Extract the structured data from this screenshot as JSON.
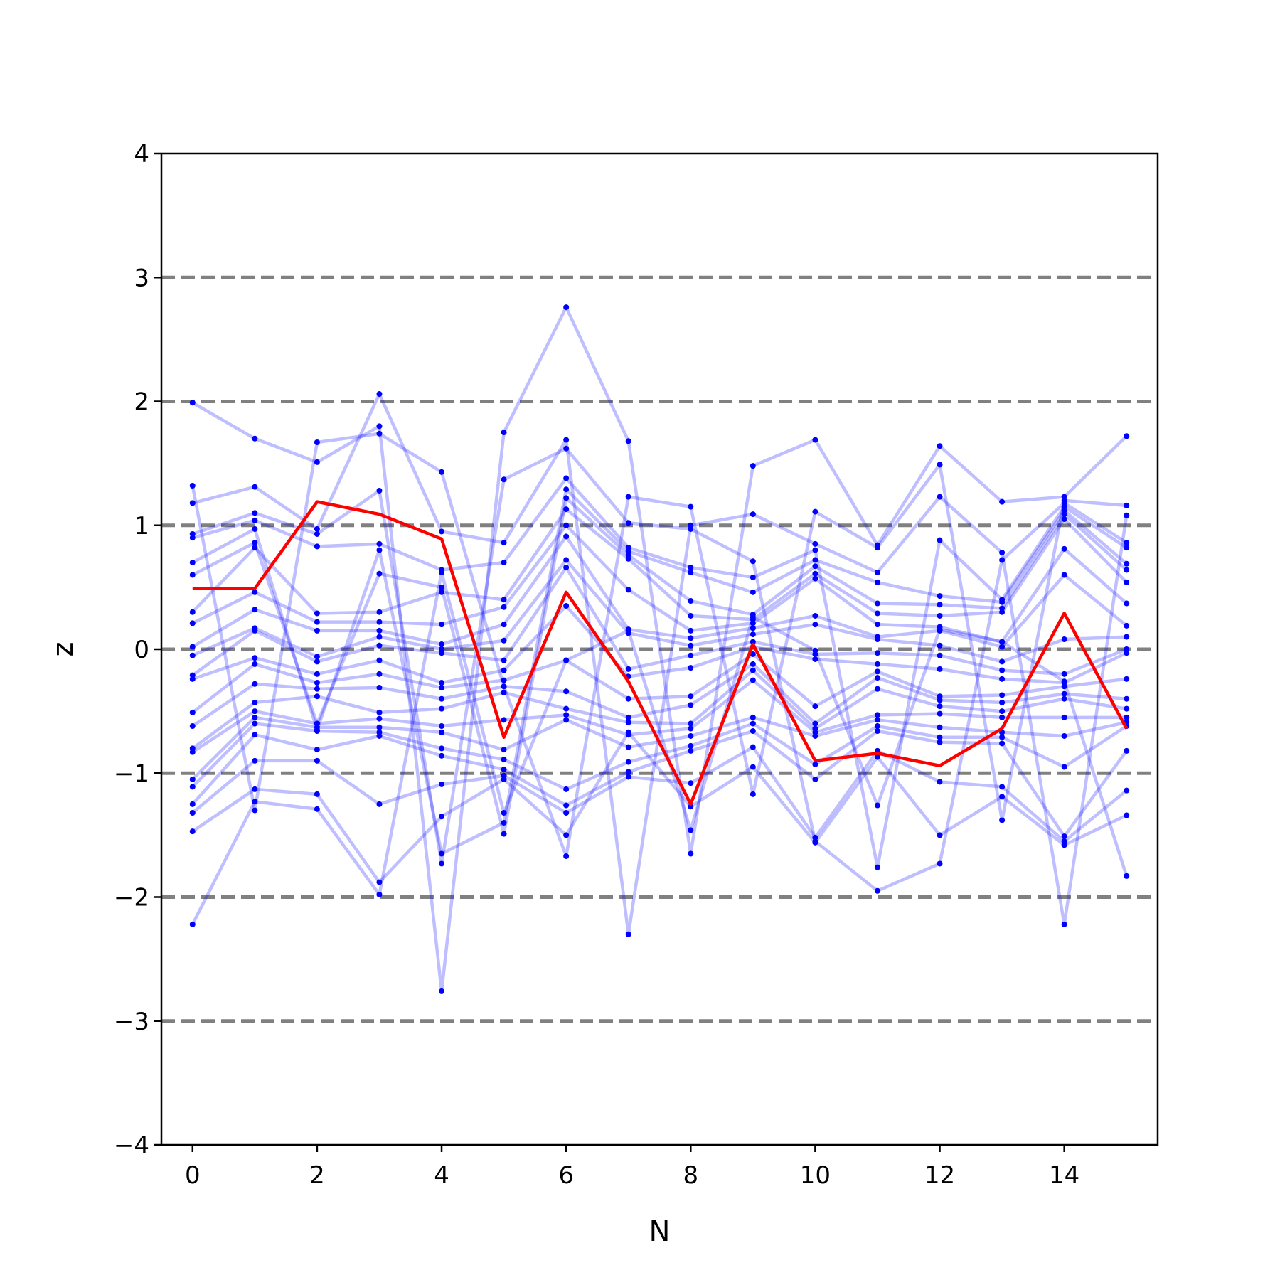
{
  "chart_data": {
    "type": "line",
    "title": "",
    "xlabel": "N",
    "ylabel": "z",
    "xlim": [
      -0.5,
      15.5
    ],
    "ylim": [
      -4,
      4
    ],
    "xticks": [
      0,
      2,
      4,
      6,
      8,
      10,
      12,
      14
    ],
    "xtick_labels": [
      "0",
      "2",
      "4",
      "6",
      "8",
      "10",
      "12",
      "14"
    ],
    "yticks": [
      -4,
      -3,
      -2,
      -1,
      0,
      1,
      2,
      3,
      4
    ],
    "ytick_labels": [
      "−4",
      "−3",
      "−2",
      "−1",
      "0",
      "1",
      "2",
      "3",
      "4"
    ],
    "reference_lines": [
      -3,
      -2,
      -1,
      0,
      1,
      2,
      3
    ],
    "grid": false,
    "legend": "none",
    "x": [
      0,
      1,
      2,
      3,
      4,
      5,
      6,
      7,
      8,
      9,
      10,
      11,
      12,
      13,
      14,
      15
    ],
    "background_series": [
      [
        1.99,
        1.7,
        1.51,
        1.8,
        -2.76,
        1.75,
        2.76,
        1.68,
        -1.65,
        1.48,
        1.69,
        0.84,
        1.64,
        1.19,
        1.23,
        1.72
      ],
      [
        1.32,
        -1.3,
        1.67,
        1.74,
        1.43,
        -0.3,
        -1.67,
        1.23,
        1.15,
        -1.17,
        1.11,
        0.82,
        1.49,
        -1.38,
        1.2,
        1.16
      ],
      [
        1.18,
        1.31,
        0.97,
        2.06,
        0.95,
        0.86,
        1.69,
        -2.3,
        1.0,
        1.09,
        0.85,
        0.62,
        1.23,
        0.78,
        -2.22,
        1.08
      ],
      [
        0.93,
        1.1,
        0.93,
        1.28,
        -1.73,
        1.37,
        1.62,
        1.02,
        0.97,
        0.71,
        -1.55,
        -1.95,
        -1.73,
        0.72,
        1.18,
        0.86
      ],
      [
        0.9,
        1.04,
        0.83,
        0.85,
        0.64,
        0.7,
        1.38,
        0.82,
        0.66,
        0.58,
        0.8,
        -1.76,
        0.88,
        0.4,
        1.15,
        0.82
      ],
      [
        0.7,
        0.97,
        -0.65,
        0.8,
        -1.65,
        -1.4,
        1.29,
        0.79,
        0.62,
        0.46,
        0.72,
        0.54,
        0.43,
        0.38,
        1.12,
        0.69
      ],
      [
        0.6,
        0.86,
        -0.6,
        0.61,
        0.5,
        -1.49,
        1.22,
        0.76,
        0.39,
        0.28,
        0.67,
        0.37,
        0.36,
        0.33,
        1.09,
        0.64
      ],
      [
        0.3,
        0.82,
        0.29,
        0.3,
        0.46,
        0.4,
        1.13,
        0.73,
        0.27,
        0.24,
        0.61,
        0.29,
        0.27,
        0.3,
        1.05,
        0.54
      ],
      [
        0.21,
        0.46,
        0.22,
        0.22,
        0.2,
        0.34,
        1.0,
        0.48,
        0.15,
        0.21,
        0.57,
        0.2,
        0.18,
        0.06,
        0.81,
        0.37
      ],
      [
        0.02,
        0.32,
        0.15,
        0.15,
        0.04,
        0.2,
        0.91,
        0.16,
        0.09,
        0.17,
        0.27,
        0.1,
        0.15,
        0.02,
        0.6,
        0.19
      ],
      [
        -0.05,
        0.17,
        -0.06,
        0.1,
        0.0,
        0.07,
        0.72,
        0.13,
        0.03,
        0.12,
        0.2,
        0.08,
        0.03,
        -0.1,
        0.08,
        0.1
      ],
      [
        -0.21,
        0.15,
        -0.1,
        0.03,
        -0.03,
        -0.09,
        0.66,
        -0.16,
        -0.05,
        0.06,
        -0.04,
        -0.03,
        -0.05,
        -0.17,
        -0.2,
        0.0
      ],
      [
        -0.24,
        -0.07,
        -0.2,
        -0.09,
        -0.27,
        -0.17,
        0.35,
        -0.22,
        -0.15,
        0.02,
        -0.08,
        -0.12,
        -0.16,
        -0.24,
        -0.27,
        -0.03
      ],
      [
        -0.51,
        -0.12,
        -0.27,
        -0.2,
        -0.31,
        -0.25,
        -0.09,
        -0.4,
        -0.38,
        -0.04,
        -0.46,
        -0.18,
        -0.38,
        -0.37,
        -0.3,
        -0.24
      ],
      [
        -0.62,
        -0.28,
        -0.32,
        -0.31,
        -0.4,
        -0.3,
        -0.34,
        -0.55,
        -0.45,
        -0.12,
        -0.6,
        -0.23,
        -0.41,
        -0.43,
        -0.36,
        -0.4
      ],
      [
        -0.8,
        -0.43,
        -0.38,
        -0.51,
        -0.48,
        -0.35,
        -0.48,
        -0.59,
        -0.6,
        -0.17,
        -0.64,
        -0.32,
        -0.46,
        -0.5,
        -0.4,
        -0.48
      ],
      [
        -0.83,
        -0.5,
        -0.6,
        -0.56,
        -0.62,
        -0.57,
        -0.53,
        -0.69,
        -0.64,
        -0.25,
        -0.67,
        -0.53,
        -0.52,
        -0.55,
        -0.55,
        -0.55
      ],
      [
        -1.05,
        -0.55,
        -0.63,
        -0.63,
        -0.67,
        -0.81,
        -0.57,
        -0.79,
        -0.7,
        -0.55,
        -0.7,
        -0.57,
        -0.63,
        -0.67,
        -0.7,
        -0.59
      ],
      [
        -1.11,
        -0.6,
        -0.66,
        -0.67,
        -0.8,
        -0.89,
        -1.13,
        -0.91,
        -0.78,
        -0.6,
        -0.93,
        -0.62,
        -0.71,
        -0.71,
        -0.95,
        -0.62
      ],
      [
        -1.25,
        -0.69,
        -0.81,
        -0.7,
        -0.86,
        -0.97,
        -1.26,
        -0.99,
        -0.82,
        -0.66,
        -1.05,
        -0.66,
        -0.75,
        -0.76,
        -1.51,
        -0.82
      ],
      [
        -1.32,
        -0.9,
        -0.9,
        -1.25,
        -1.09,
        -1.02,
        -1.32,
        -1.03,
        -1.08,
        -0.79,
        -1.52,
        -0.82,
        -1.07,
        -1.11,
        -1.55,
        -1.14
      ],
      [
        -1.47,
        -1.13,
        -1.17,
        -1.88,
        -1.35,
        -1.05,
        -1.5,
        -0.67,
        -1.27,
        -0.95,
        -1.56,
        -0.87,
        -1.5,
        -1.19,
        -1.58,
        -1.34
      ],
      [
        -2.22,
        -1.23,
        -1.29,
        -1.98,
        0.62,
        -1.32,
        -0.09,
        0.15,
        -1.46,
        0.26,
        -0.01,
        -1.26,
        0.16,
        0.06,
        -0.26,
        -1.83
      ]
    ],
    "series": [
      {
        "color": "#ff0000",
        "values": [
          0.49,
          0.49,
          1.19,
          1.09,
          0.89,
          -0.71,
          0.46,
          -0.26,
          -1.25,
          0.04,
          -0.9,
          -0.84,
          -0.94,
          -0.64,
          0.29,
          -0.64
        ]
      }
    ],
    "colors": {
      "background_line": "#0000ff",
      "background_point": "#0000ff",
      "highlight_line": "#ff0000",
      "reference_line": "#808080",
      "axis": "#000000"
    }
  }
}
